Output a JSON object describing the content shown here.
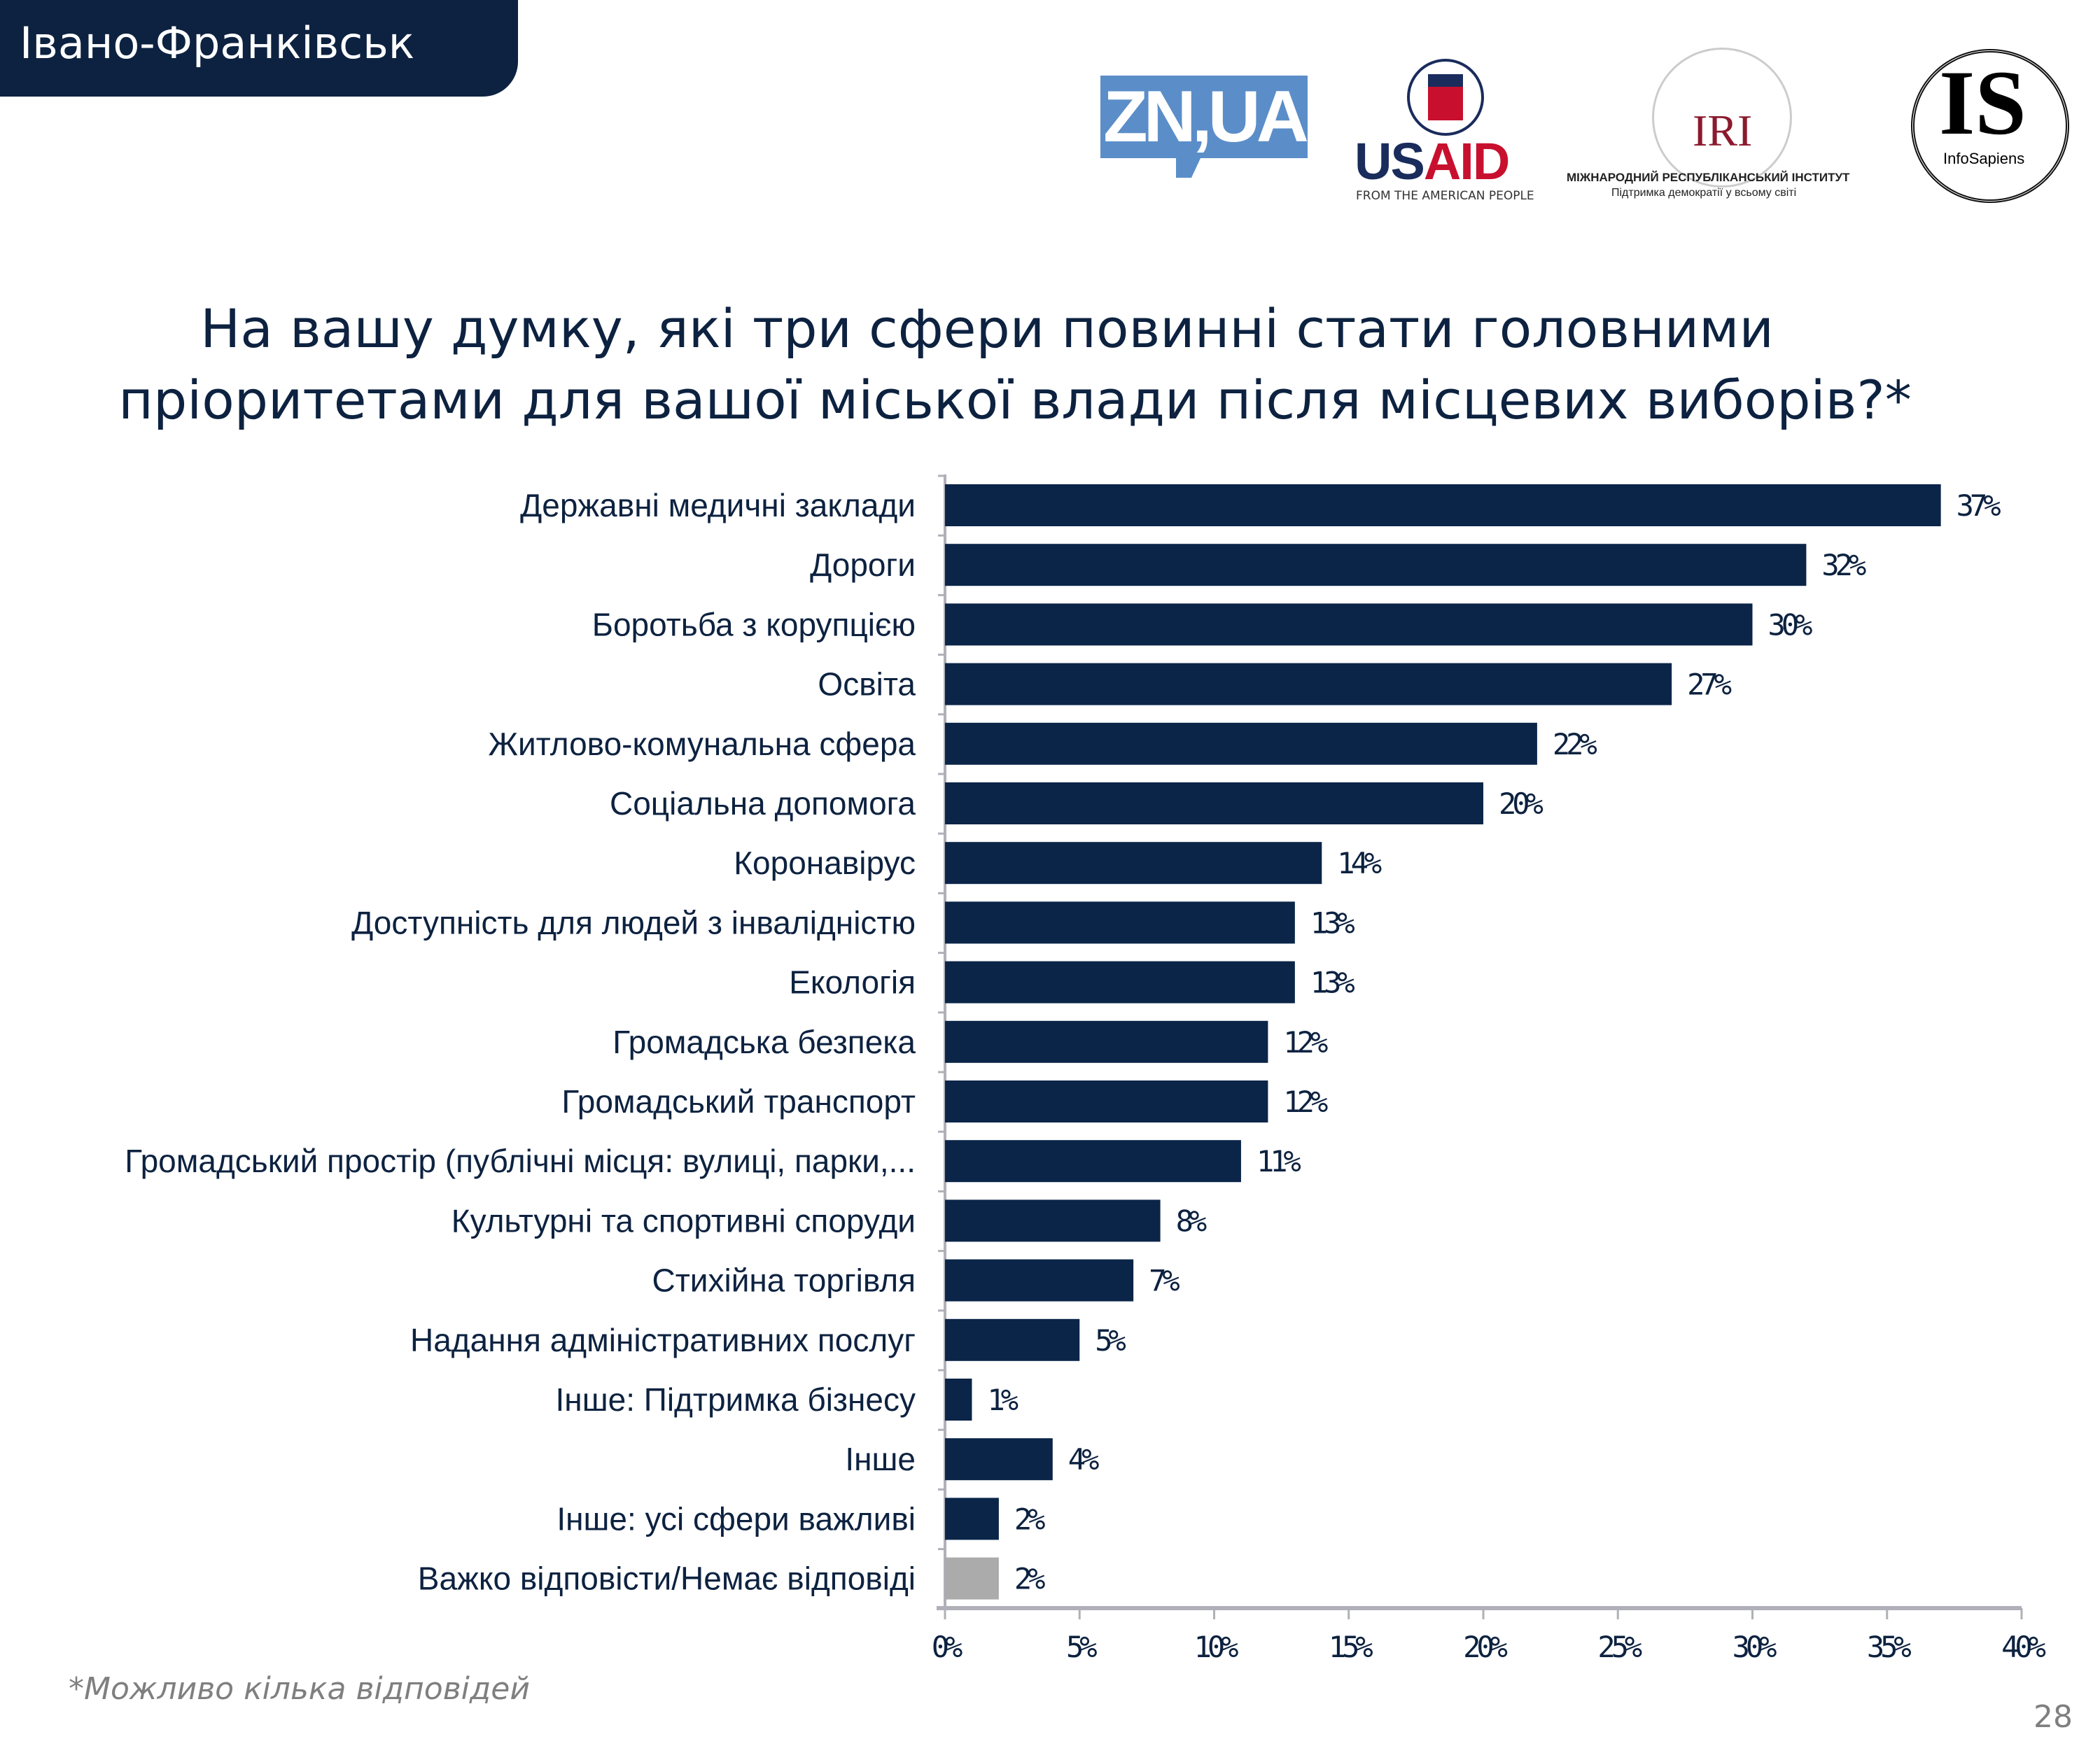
{
  "header": {
    "title": "Івано-Франківськ"
  },
  "logos": {
    "zn": "ZN,UA",
    "usaid": {
      "us": "US",
      "aid": "AID",
      "subtitle": "FROM THE AMERICAN PEOPLE"
    },
    "iri": {
      "name": "IRI",
      "line1": "МІЖНАРОДНИЙ РЕСПУБЛІКАНСЬКИЙ ІНСТИТУТ",
      "line2": "Підтримка демократії у всьому світі"
    },
    "infosapiens": {
      "mark": "IS",
      "name": "InfoSapiens"
    }
  },
  "chart_data": {
    "type": "bar",
    "orientation": "horizontal",
    "title_lines": [
      "На вашу думку, які три сфери повинні стати головними",
      "пріоритетами для  вашої міської влади після місцевих виборів?*"
    ],
    "categories": [
      "Державні медичні заклади",
      "Дороги",
      "Боротьба з корупцією",
      "Освіта",
      "Житлово-комунальна сфера",
      "Соціальна допомога",
      "Коронавірус",
      "Доступність для людей з інвалідністю",
      "Екологія",
      "Громадська безпека",
      "Громадський транспорт",
      "Громадський простір (публічні місця: вулиці, парки,...",
      "Культурні та спортивні споруди",
      "Стихійна торгівля",
      "Надання адміністративних послуг",
      "Інше: Підтримка бізнесу",
      "Інше",
      "Інше: усі сфери важливі",
      "Важко відповісти/Немає відповіді"
    ],
    "values": [
      37,
      32,
      30,
      27,
      22,
      20,
      14,
      13,
      13,
      12,
      12,
      11,
      8,
      7,
      5,
      1,
      4,
      2,
      2
    ],
    "data_labels": [
      "37%",
      "32%",
      "30%",
      "27%",
      "22%",
      "20%",
      "14%",
      "13%",
      "13%",
      "12%",
      "12%",
      "11%",
      "8%",
      "7%",
      "5%",
      "1%",
      "4%",
      "2%",
      "2%"
    ],
    "xlim": [
      0,
      40
    ],
    "x_ticks": [
      "0%",
      "5%",
      "10%",
      "15%",
      "20%",
      "25%",
      "30%",
      "35%",
      "40%"
    ],
    "grid": false,
    "colors": {
      "bar": "#0a2548",
      "last_bar": "#ababab",
      "axis": "#b0b0b8"
    }
  },
  "footnote": "*Можливо кілька відповідей",
  "page_number": "28"
}
